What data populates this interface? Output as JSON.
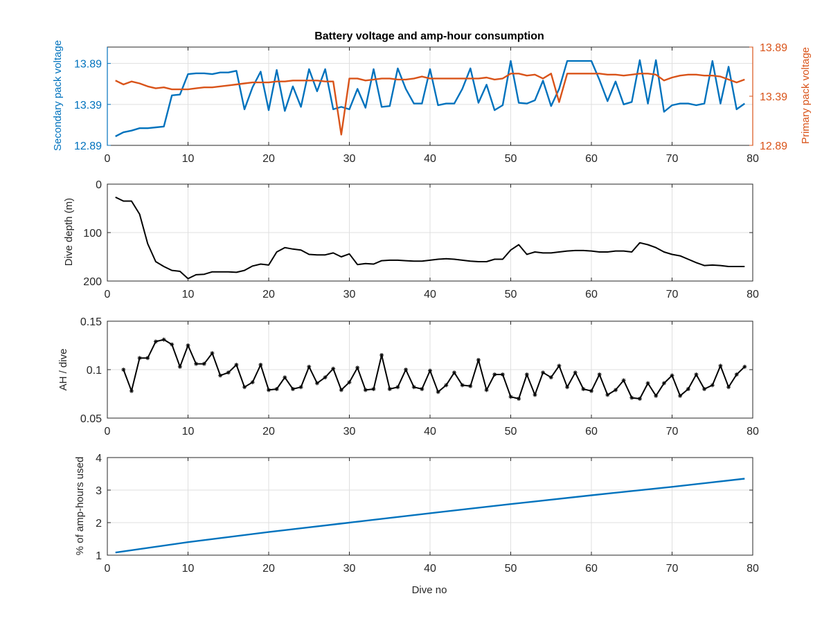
{
  "colors": {
    "secondary": "#0072BD",
    "primary": "#D95319",
    "black": "#000000",
    "axis": "#262626",
    "grid": "#dfdfdf"
  },
  "chart_data": [
    {
      "type": "line",
      "title": "Battery voltage and amp-hour consumption",
      "xlabel": "",
      "ylabel": "Secondary pack voltage",
      "ylabel_right": "Primary pack voltage",
      "xlim": [
        0,
        80
      ],
      "ylim": [
        12.89,
        14.09
      ],
      "ylim_right": [
        12.89,
        13.89
      ],
      "xticks": [
        0,
        10,
        20,
        30,
        40,
        50,
        60,
        70,
        80
      ],
      "yticks": [
        12.89,
        13.39,
        13.89
      ],
      "yticks_right": [
        12.89,
        13.39,
        13.89
      ],
      "grid": true,
      "series": [
        {
          "color": "#0072BD",
          "axis": "left",
          "x": [
            1,
            2,
            3,
            4,
            5,
            6,
            7,
            8,
            9,
            10,
            11,
            12,
            13,
            14,
            15,
            16,
            17,
            18,
            19,
            20,
            21,
            22,
            23,
            24,
            25,
            26,
            27,
            28,
            29,
            30,
            31,
            32,
            33,
            34,
            35,
            36,
            37,
            38,
            39,
            40,
            41,
            42,
            43,
            44,
            45,
            46,
            47,
            48,
            49,
            50,
            51,
            52,
            53,
            54,
            55,
            56,
            57,
            58,
            59,
            60,
            61,
            62,
            63,
            64,
            65,
            66,
            67,
            68,
            69,
            70,
            71,
            72,
            73,
            74,
            75,
            76,
            77,
            78,
            79
          ],
          "values": [
            13.0,
            13.05,
            13.07,
            13.1,
            13.1,
            13.11,
            13.12,
            13.5,
            13.51,
            13.76,
            13.77,
            13.77,
            13.76,
            13.78,
            13.78,
            13.8,
            13.33,
            13.6,
            13.79,
            13.32,
            13.81,
            13.31,
            13.61,
            13.36,
            13.82,
            13.55,
            13.82,
            13.33,
            13.36,
            13.33,
            13.58,
            13.35,
            13.82,
            13.36,
            13.37,
            13.83,
            13.58,
            13.4,
            13.4,
            13.82,
            13.38,
            13.4,
            13.4,
            13.58,
            13.83,
            13.41,
            13.63,
            13.32,
            13.38,
            13.92,
            13.41,
            13.4,
            13.44,
            13.68,
            13.37,
            13.58,
            13.92,
            13.92,
            13.92,
            13.92,
            13.69,
            13.43,
            13.67,
            13.39,
            13.42,
            13.93,
            13.4,
            13.93,
            13.3,
            13.38,
            13.4,
            13.4,
            13.38,
            13.4,
            13.92,
            13.4,
            13.85,
            13.33,
            13.4
          ]
        },
        {
          "color": "#D95319",
          "axis": "right",
          "x": [
            1,
            2,
            3,
            4,
            5,
            6,
            7,
            8,
            9,
            10,
            11,
            12,
            13,
            14,
            15,
            16,
            17,
            18,
            19,
            20,
            21,
            22,
            23,
            24,
            25,
            26,
            27,
            28,
            29,
            30,
            31,
            32,
            33,
            34,
            35,
            36,
            37,
            38,
            39,
            40,
            41,
            42,
            43,
            44,
            45,
            46,
            47,
            48,
            49,
            50,
            51,
            52,
            53,
            54,
            55,
            56,
            57,
            58,
            59,
            60,
            61,
            62,
            63,
            64,
            65,
            66,
            67,
            68,
            69,
            70,
            71,
            72,
            73,
            74,
            75,
            76,
            77,
            78,
            79
          ],
          "values": [
            13.55,
            13.51,
            13.54,
            13.52,
            13.49,
            13.47,
            13.48,
            13.46,
            13.46,
            13.46,
            13.47,
            13.48,
            13.48,
            13.49,
            13.5,
            13.51,
            13.52,
            13.53,
            13.53,
            13.53,
            13.54,
            13.54,
            13.55,
            13.55,
            13.55,
            13.55,
            13.54,
            13.54,
            13.0,
            13.57,
            13.57,
            13.55,
            13.56,
            13.57,
            13.57,
            13.56,
            13.56,
            13.57,
            13.59,
            13.57,
            13.57,
            13.57,
            13.57,
            13.57,
            13.57,
            13.57,
            13.58,
            13.56,
            13.57,
            13.62,
            13.62,
            13.6,
            13.61,
            13.57,
            13.62,
            13.33,
            13.62,
            13.62,
            13.62,
            13.62,
            13.62,
            13.61,
            13.61,
            13.6,
            13.61,
            13.62,
            13.62,
            13.61,
            13.55,
            13.58,
            13.6,
            13.61,
            13.61,
            13.6,
            13.6,
            13.59,
            13.56,
            13.53,
            13.56
          ]
        }
      ]
    },
    {
      "type": "line",
      "xlabel": "",
      "ylabel": "Dive depth (m)",
      "xlim": [
        0,
        80
      ],
      "ylim": [
        0,
        200
      ],
      "y_reversed": true,
      "xticks": [
        0,
        10,
        20,
        30,
        40,
        50,
        60,
        70,
        80
      ],
      "yticks": [
        0,
        100,
        200
      ],
      "grid": true,
      "series": [
        {
          "color": "#000000",
          "x": [
            1,
            2,
            3,
            4,
            5,
            6,
            7,
            8,
            9,
            10,
            11,
            12,
            13,
            14,
            15,
            16,
            17,
            18,
            19,
            20,
            21,
            22,
            23,
            24,
            25,
            26,
            27,
            28,
            29,
            30,
            31,
            32,
            33,
            34,
            35,
            36,
            37,
            38,
            39,
            40,
            41,
            42,
            43,
            44,
            45,
            46,
            47,
            48,
            49,
            50,
            51,
            52,
            53,
            54,
            55,
            56,
            57,
            58,
            59,
            60,
            61,
            62,
            63,
            64,
            65,
            66,
            67,
            68,
            69,
            70,
            71,
            72,
            73,
            74,
            75,
            76,
            77,
            78,
            79
          ],
          "values": [
            27,
            35,
            35,
            62,
            123,
            160,
            170,
            178,
            180,
            195,
            187,
            186,
            181,
            181,
            181,
            182,
            178,
            169,
            165,
            167,
            140,
            131,
            134,
            136,
            145,
            146,
            146,
            142,
            150,
            144,
            166,
            164,
            165,
            158,
            157,
            157,
            158,
            159,
            159,
            157,
            155,
            154,
            155,
            157,
            159,
            160,
            160,
            155,
            155,
            136,
            125,
            145,
            140,
            142,
            142,
            140,
            138,
            137,
            137,
            138,
            140,
            140,
            138,
            138,
            140,
            121,
            125,
            131,
            140,
            145,
            148,
            155,
            162,
            168,
            167,
            168,
            170,
            170,
            170
          ]
        }
      ]
    },
    {
      "type": "line",
      "xlabel": "",
      "ylabel": "AH / dive",
      "xlim": [
        0,
        80
      ],
      "ylim": [
        0.05,
        0.15
      ],
      "xticks": [
        0,
        10,
        20,
        30,
        40,
        50,
        60,
        70,
        80
      ],
      "yticks": [
        0.05,
        0.1,
        0.15
      ],
      "ytick_labels": [
        "0.05",
        "0.1",
        "0.15"
      ],
      "grid": true,
      "markers": true,
      "series": [
        {
          "color": "#000000",
          "x": [
            2,
            3,
            4,
            5,
            6,
            7,
            8,
            9,
            10,
            11,
            12,
            13,
            14,
            15,
            16,
            17,
            18,
            19,
            20,
            21,
            22,
            23,
            24,
            25,
            26,
            27,
            28,
            29,
            30,
            31,
            32,
            33,
            34,
            35,
            36,
            37,
            38,
            39,
            40,
            41,
            42,
            43,
            44,
            45,
            46,
            47,
            48,
            49,
            50,
            51,
            52,
            53,
            54,
            55,
            56,
            57,
            58,
            59,
            60,
            61,
            62,
            63,
            64,
            65,
            66,
            67,
            68,
            69,
            70,
            71,
            72,
            73,
            74,
            75,
            76,
            77,
            78,
            79
          ],
          "values": [
            0.1,
            0.078,
            0.112,
            0.112,
            0.129,
            0.131,
            0.126,
            0.103,
            0.125,
            0.106,
            0.106,
            0.117,
            0.094,
            0.097,
            0.105,
            0.082,
            0.087,
            0.105,
            0.079,
            0.08,
            0.092,
            0.08,
            0.082,
            0.103,
            0.086,
            0.092,
            0.101,
            0.079,
            0.087,
            0.102,
            0.079,
            0.08,
            0.115,
            0.08,
            0.082,
            0.1,
            0.082,
            0.08,
            0.099,
            0.077,
            0.084,
            0.097,
            0.084,
            0.083,
            0.11,
            0.079,
            0.095,
            0.095,
            0.072,
            0.07,
            0.095,
            0.074,
            0.097,
            0.092,
            0.104,
            0.082,
            0.097,
            0.08,
            0.078,
            0.095,
            0.074,
            0.079,
            0.089,
            0.071,
            0.07,
            0.086,
            0.073,
            0.086,
            0.094,
            0.073,
            0.08,
            0.095,
            0.08,
            0.084,
            0.104,
            0.082,
            0.095,
            0.103
          ]
        }
      ]
    },
    {
      "type": "line",
      "xlabel": "Dive no",
      "ylabel": "% of amp-hours used",
      "xlim": [
        0,
        80
      ],
      "ylim": [
        1,
        4
      ],
      "xticks": [
        0,
        10,
        20,
        30,
        40,
        50,
        60,
        70,
        80
      ],
      "yticks": [
        1,
        2,
        3,
        4
      ],
      "grid": true,
      "series": [
        {
          "color": "#0072BD",
          "x": [
            1,
            10,
            20,
            30,
            40,
            50,
            60,
            70,
            79
          ],
          "values": [
            1.08,
            1.4,
            1.71,
            2.0,
            2.29,
            2.57,
            2.84,
            3.1,
            3.35
          ]
        }
      ]
    }
  ]
}
